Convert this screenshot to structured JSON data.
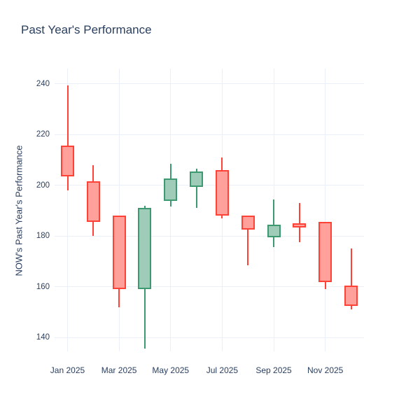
{
  "chart_data": {
    "type": "candlestick",
    "title": "Past Year's Performance",
    "xlabel": "",
    "ylabel": "NOW's Past Year's Performance",
    "x": [
      "Jan 2025",
      "Feb 2025",
      "Mar 2025",
      "Apr 2025",
      "May 2025",
      "Jun 2025",
      "Jul 2025",
      "Aug 2025",
      "Sep 2025",
      "Oct 2025",
      "Nov 2025",
      "Dec 2025"
    ],
    "ohlc": [
      {
        "x": "Jan 2025",
        "open": 215.0,
        "high": 239.5,
        "low": 198.0,
        "close": 204.0
      },
      {
        "x": "Feb 2025",
        "open": 201.0,
        "high": 208.0,
        "low": 180.0,
        "close": 186.0
      },
      {
        "x": "Mar 2025",
        "open": 187.5,
        "high": 188.0,
        "low": 152.0,
        "close": 159.5
      },
      {
        "x": "Apr 2025",
        "open": 159.5,
        "high": 192.0,
        "low": 135.5,
        "close": 190.5
      },
      {
        "x": "May 2025",
        "open": 194.5,
        "high": 208.5,
        "low": 191.5,
        "close": 202.0
      },
      {
        "x": "Jun 2025",
        "open": 200.0,
        "high": 206.5,
        "low": 191.0,
        "close": 205.0
      },
      {
        "x": "Jul 2025",
        "open": 205.5,
        "high": 211.0,
        "low": 187.0,
        "close": 188.5
      },
      {
        "x": "Aug 2025",
        "open": 187.5,
        "high": 187.5,
        "low": 168.5,
        "close": 183.0
      },
      {
        "x": "Sep 2025",
        "open": 180.0,
        "high": 194.5,
        "low": 175.5,
        "close": 184.0
      },
      {
        "x": "Oct 2025",
        "open": 184.5,
        "high": 193.0,
        "low": 177.5,
        "close": 184.0
      },
      {
        "x": "Nov 2025",
        "open": 185.0,
        "high": 185.0,
        "low": 159.0,
        "close": 162.5
      },
      {
        "x": "Dec 2025",
        "open": 160.0,
        "high": 175.0,
        "low": 151.0,
        "close": 153.0
      }
    ],
    "ytick_values": [
      140,
      160,
      180,
      200,
      220,
      240
    ],
    "xtick_labels": [
      "Jan 2025",
      "Mar 2025",
      "May 2025",
      "Jul 2025",
      "Sep 2025",
      "Nov 2025"
    ],
    "xtick_indices": [
      0,
      2,
      4,
      6,
      8,
      10
    ],
    "ylim": [
      134.5,
      246.0
    ],
    "grid": true,
    "legend": false,
    "colors": {
      "increasing_line": "#3d9970",
      "increasing_fill": "#9eccb8",
      "decreasing_line": "#ff4136",
      "decreasing_fill": "#ffa09b",
      "gridline": "#ebf0f8",
      "text": "#2a3f5f",
      "background": "#ffffff"
    }
  }
}
